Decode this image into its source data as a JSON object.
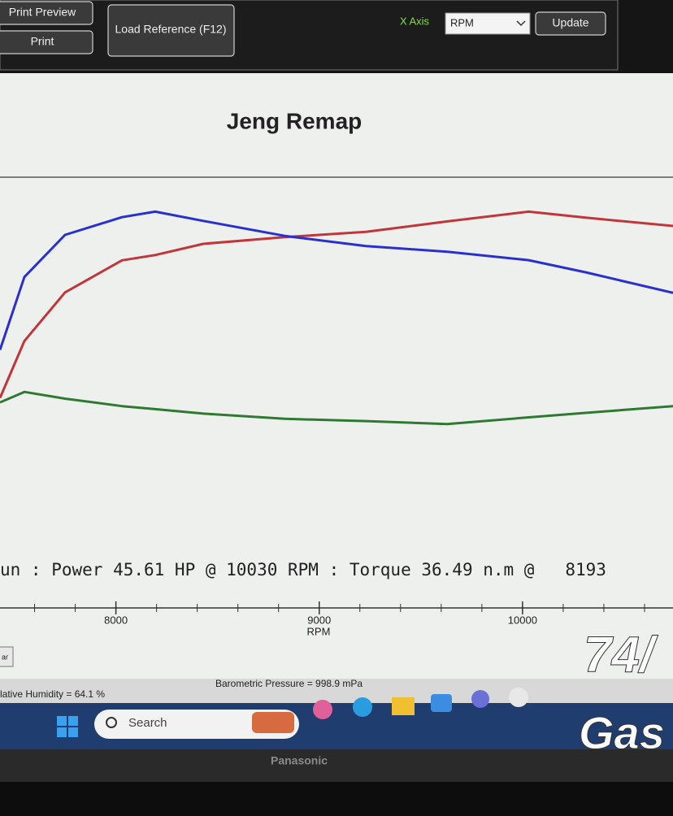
{
  "toolbar": {
    "print_preview": "Print Preview",
    "print": "Print",
    "load_reference": "Load Reference (F12)",
    "x_axis_label": "X Axis",
    "x_axis_select": "RPM",
    "update": "Update"
  },
  "chart_data": {
    "type": "line",
    "title": "Jeng Remap",
    "summary": "un : Power 45.61 HP @ 10030 RPM : Torque 36.49 n.m @   8193",
    "x_label": "RPM",
    "x": [
      7430,
      7550,
      7750,
      8030,
      8193,
      8430,
      8830,
      9230,
      9630,
      10030,
      10310,
      10740
    ],
    "series": [
      {
        "color": "#c0363a",
        "values": [
          20.7,
          28.3,
          34.8,
          39.1,
          39.8,
          41.3,
          42.2,
          42.9,
          44.3,
          45.61,
          44.8,
          43.7
        ]
      },
      {
        "color": "#2a2fd0",
        "axis": "y2",
        "values": [
          21.7,
          29.5,
          34.0,
          35.9,
          36.49,
          35.5,
          33.9,
          32.8,
          32.2,
          31.3,
          30.0,
          27.8
        ]
      },
      {
        "color": "#2f7a32",
        "values": [
          20.1,
          21.5,
          20.6,
          19.6,
          19.2,
          18.6,
          17.9,
          17.6,
          17.2,
          18.1,
          18.7,
          19.6
        ]
      }
    ],
    "xlim": [
      7430,
      10740
    ],
    "xticks": [
      8000,
      9000,
      10000
    ],
    "ylim": [
      0,
      50
    ],
    "y2lim": [
      0,
      40
    ]
  },
  "status": {
    "humidity": "lative Humidity = 64.1 %",
    "pressure": "Barometric Pressure = 998.9 mPa",
    "side_button": "ar"
  },
  "taskbar": {
    "search": "Search"
  },
  "monitor": {
    "brand": "Panasonic"
  },
  "overlay": {
    "line1": "74/",
    "line2": "Gas"
  }
}
